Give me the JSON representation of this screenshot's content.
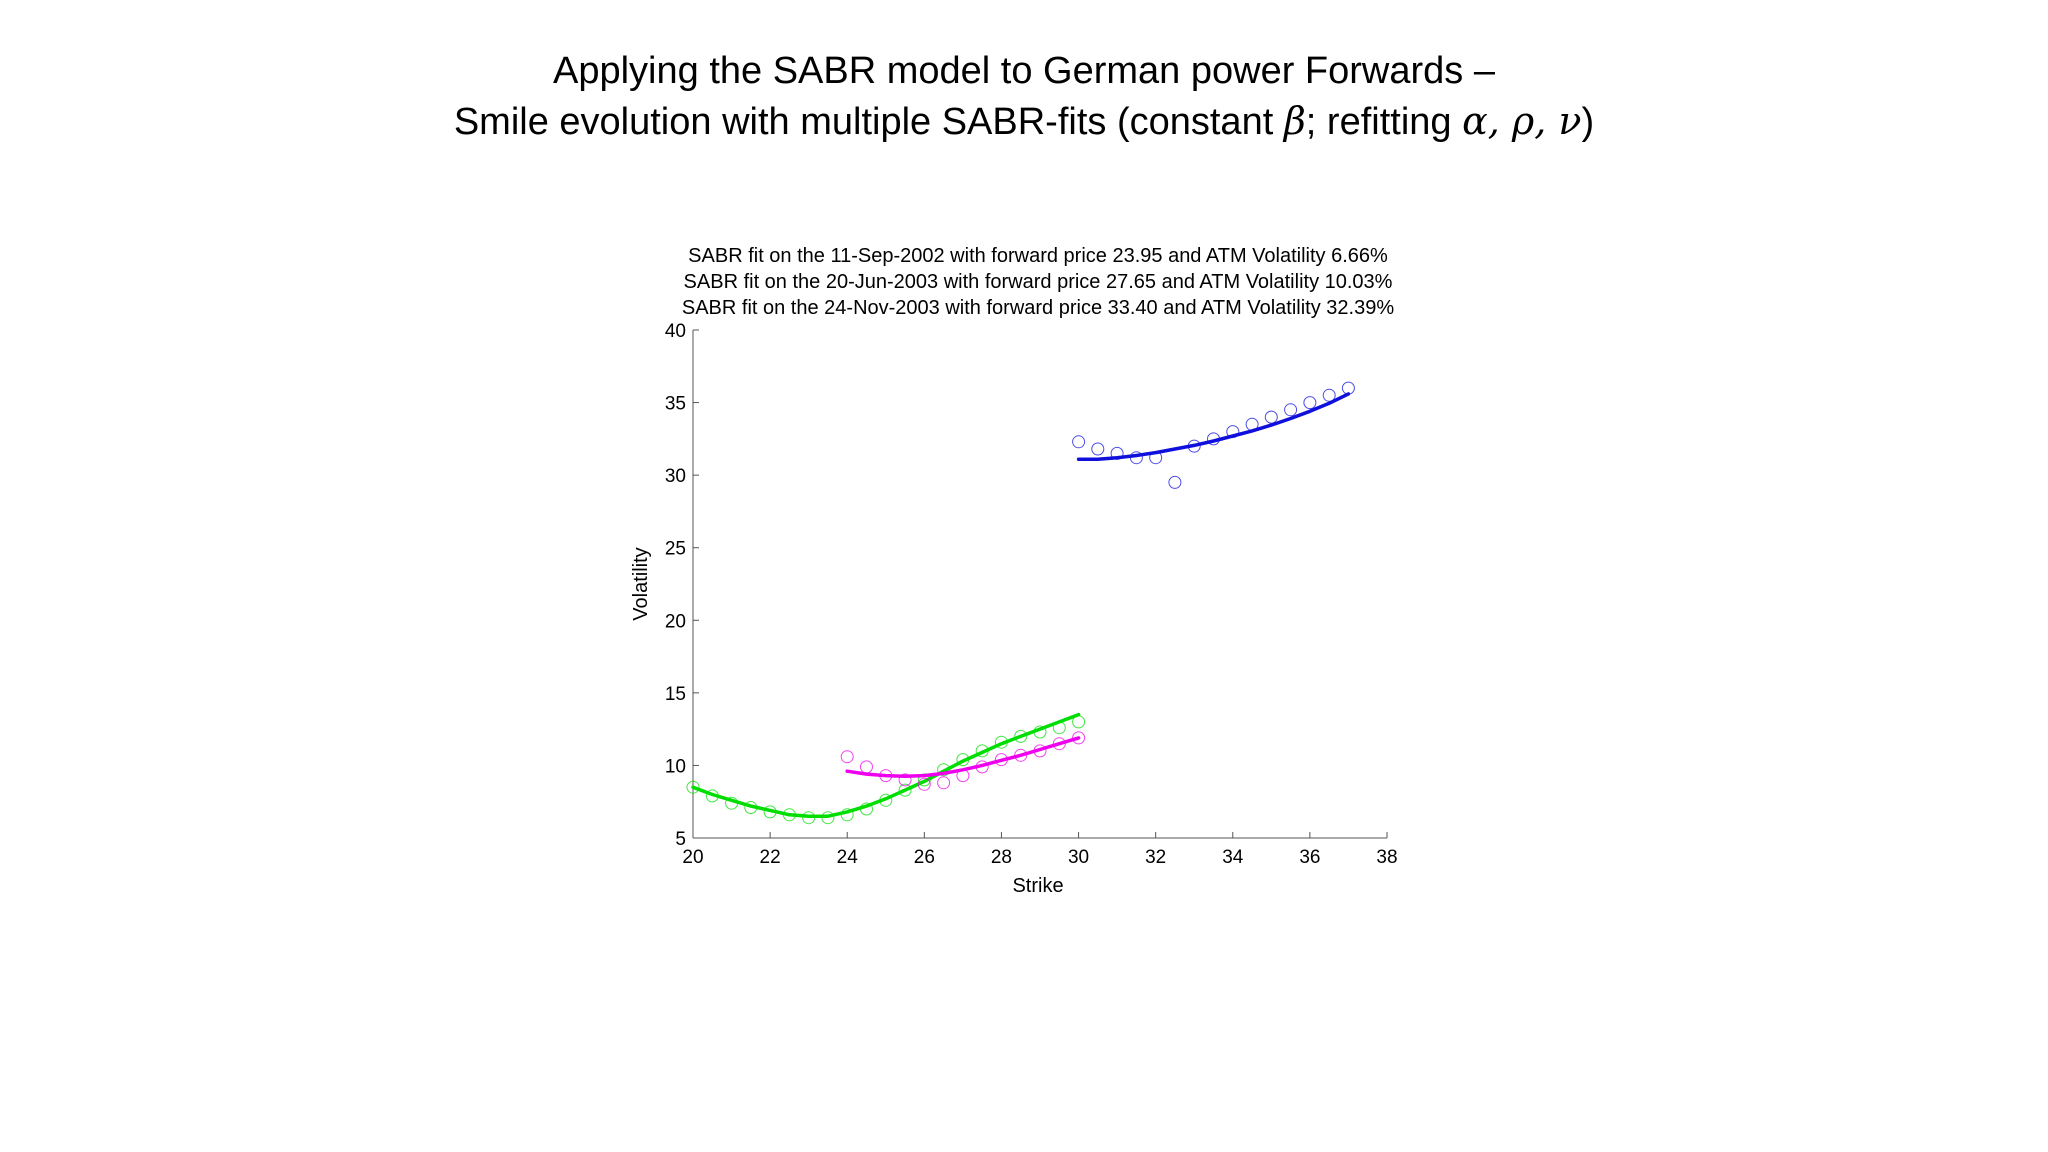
{
  "slide": {
    "title_line1": "Applying the SABR model to German power Forwards –",
    "title_line2_prefix": "Smile evolution with multiple SABR-fits (constant ",
    "title_beta": "β",
    "title_mid": "; refitting ",
    "title_params": "α, ρ, ν",
    "title_suffix": ")"
  },
  "chart_data": {
    "type": "scatter",
    "title": [
      "SABR fit on the 11-Sep-2002 with forward price 23.95 and ATM Volatility 6.66%",
      "SABR fit on the 20-Jun-2003 with forward price 27.65 and ATM Volatility 10.03%",
      "SABR fit on the 24-Nov-2003 with forward price 33.40 and ATM Volatility 32.39%"
    ],
    "xlabel": "Strike",
    "ylabel": "Volatility",
    "xlim": [
      20,
      38
    ],
    "ylim": [
      5,
      40
    ],
    "xticks": [
      20,
      22,
      24,
      26,
      28,
      30,
      32,
      34,
      36,
      38
    ],
    "yticks": [
      5,
      10,
      15,
      20,
      25,
      30,
      35,
      40
    ],
    "grid": false,
    "series": [
      {
        "date": "11-Sep-2002",
        "color": "#00dd00",
        "markers_x": [
          20,
          20.5,
          21,
          21.5,
          22,
          22.5,
          23,
          23.5,
          24,
          24.5,
          25,
          25.5,
          26,
          26.5,
          27,
          27.5,
          28,
          28.5,
          29,
          29.5,
          30
        ],
        "markers_y": [
          8.5,
          7.9,
          7.4,
          7.1,
          6.8,
          6.6,
          6.4,
          6.4,
          6.6,
          7.0,
          7.6,
          8.3,
          9.0,
          9.7,
          10.4,
          11.0,
          11.6,
          12.0,
          12.3,
          12.6,
          13.0
        ],
        "fit_x": [
          20,
          20.5,
          21,
          21.5,
          22,
          22.5,
          23,
          23.5,
          24,
          24.5,
          25,
          25.5,
          26,
          26.5,
          27,
          27.5,
          28,
          28.5,
          29,
          29.5,
          30
        ],
        "fit_y": [
          8.5,
          8.0,
          7.6,
          7.2,
          6.9,
          6.6,
          6.5,
          6.5,
          6.8,
          7.2,
          7.7,
          8.3,
          8.9,
          9.6,
          10.3,
          10.9,
          11.5,
          12.0,
          12.5,
          13.0,
          13.5
        ]
      },
      {
        "date": "20-Jun-2003",
        "color": "#ee00ee",
        "markers_x": [
          24,
          24.5,
          25,
          25.5,
          26,
          26.5,
          27,
          27.5,
          28,
          28.5,
          29,
          29.5,
          30
        ],
        "markers_y": [
          10.6,
          9.9,
          9.3,
          9.0,
          8.7,
          8.8,
          9.3,
          9.9,
          10.4,
          10.7,
          11.0,
          11.5,
          11.9
        ],
        "fit_x": [
          24,
          24.5,
          25,
          25.5,
          26,
          26.5,
          27,
          27.5,
          28,
          28.5,
          29,
          29.5,
          30
        ],
        "fit_y": [
          9.6,
          9.4,
          9.3,
          9.25,
          9.3,
          9.45,
          9.7,
          10.0,
          10.35,
          10.7,
          11.1,
          11.5,
          11.9
        ]
      },
      {
        "date": "24-Nov-2003",
        "color": "#1010dd",
        "markers_x": [
          30,
          30.5,
          31,
          31.5,
          32,
          32.5,
          33,
          33.5,
          34,
          34.5,
          35,
          35.5,
          36,
          36.5,
          37
        ],
        "markers_y": [
          32.3,
          31.8,
          31.5,
          31.2,
          31.2,
          29.5,
          32.0,
          32.5,
          33.0,
          33.5,
          34.0,
          34.5,
          35.0,
          35.5,
          36.0
        ],
        "fit_x": [
          30,
          30.5,
          31,
          31.5,
          32,
          32.5,
          33,
          33.5,
          34,
          34.5,
          35,
          35.5,
          36,
          36.5,
          37
        ],
        "fit_y": [
          31.1,
          31.1,
          31.2,
          31.35,
          31.55,
          31.8,
          32.05,
          32.35,
          32.7,
          33.05,
          33.45,
          33.9,
          34.4,
          34.95,
          35.6
        ]
      }
    ]
  }
}
